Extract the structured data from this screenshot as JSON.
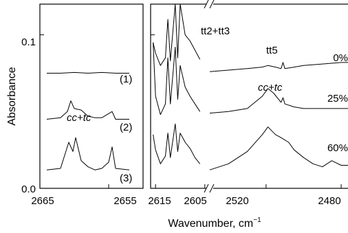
{
  "chart_data": {
    "type": "line",
    "xlabel": "Wavenumber, cm",
    "xlabel_sup": "−1",
    "ylabel": "Absorbance",
    "ylim": [
      0.0,
      0.12
    ],
    "y_ticks": [
      "0.0",
      "0.1"
    ],
    "grid": false,
    "panels": [
      {
        "id": "left",
        "x_range": [
          2665,
          2650
        ],
        "x_ticks": [
          "2665",
          "2655"
        ],
        "labels": [
          {
            "text": "cc+tc",
            "italic": true
          }
        ],
        "series": [
          {
            "name": "(1)",
            "x": [
              2664,
              2662,
              2660,
              2658,
              2656,
              2654,
              2652
            ],
            "y": [
              0.075,
              0.075,
              0.0755,
              0.075,
              0.0755,
              0.075,
              0.075
            ]
          },
          {
            "name": "(2)",
            "x": [
              2664,
              2662,
              2661,
              2660.5,
              2660,
              2659,
              2658,
              2657,
              2656,
              2654.5,
              2654,
              2652
            ],
            "y": [
              0.045,
              0.046,
              0.05,
              0.057,
              0.052,
              0.051,
              0.047,
              0.046,
              0.046,
              0.05,
              0.045,
              0.045
            ]
          },
          {
            "name": "(3)",
            "x": [
              2664,
              2662,
              2660.8,
              2660.2,
              2659.8,
              2659,
              2658,
              2657,
              2656,
              2655,
              2654.5,
              2654,
              2652
            ],
            "y": [
              0.012,
              0.013,
              0.03,
              0.024,
              0.033,
              0.018,
              0.014,
              0.012,
              0.013,
              0.017,
              0.027,
              0.013,
              0.012
            ]
          }
        ]
      },
      {
        "id": "middle",
        "x_range": [
          2616,
          2604
        ],
        "x_ticks": [
          "2615",
          "2605"
        ],
        "labels": [
          {
            "text": "tt2+tt3",
            "italic": false
          }
        ],
        "series": [
          {
            "name": "0%",
            "x": [
              2615.5,
              2615,
              2614,
              2613,
              2612.5,
              2612,
              2611,
              2610.5,
              2610,
              2609,
              2608,
              2607,
              2606
            ],
            "y": [
              0.095,
              0.088,
              0.08,
              0.085,
              0.11,
              0.083,
              0.12,
              0.085,
              0.12,
              0.1,
              0.096,
              0.09,
              0.084
            ]
          },
          {
            "name": "25%",
            "x": [
              2615.5,
              2615,
              2614,
              2613,
              2612.5,
              2612,
              2611,
              2610.5,
              2610,
              2609,
              2608,
              2607,
              2606
            ],
            "y": [
              0.095,
              0.06,
              0.048,
              0.055,
              0.085,
              0.055,
              0.092,
              0.058,
              0.08,
              0.066,
              0.06,
              0.055,
              0.05
            ]
          },
          {
            "name": "60%",
            "x": [
              2615.5,
              2615,
              2614,
              2613,
              2612.5,
              2612,
              2611,
              2610.5,
              2610,
              2609,
              2608,
              2607,
              2606
            ],
            "y": [
              0.035,
              0.025,
              0.016,
              0.021,
              0.036,
              0.02,
              0.042,
              0.024,
              0.036,
              0.03,
              0.026,
              0.02,
              0.016
            ]
          }
        ]
      },
      {
        "id": "right",
        "x_range": [
          2550,
          2476
        ],
        "x_ticks": [
          "2520",
          "2480"
        ],
        "labels": [
          {
            "text": "tt5",
            "italic": false
          },
          {
            "text": "cc+tc",
            "italic": true
          }
        ],
        "series": [
          {
            "name": "0%",
            "x": [
              2550,
              2540,
              2530,
              2522,
              2519,
              2515,
              2512,
              2511,
              2510,
              2505,
              2500,
              2490,
              2480,
              2476
            ],
            "y": [
              0.076,
              0.077,
              0.078,
              0.079,
              0.08,
              0.079,
              0.078,
              0.082,
              0.078,
              0.079,
              0.08,
              0.081,
              0.082,
              0.082
            ]
          },
          {
            "name": "25%",
            "x": [
              2550,
              2540,
              2530,
              2522,
              2519,
              2516,
              2512,
              2511,
              2510,
              2505,
              2500,
              2490,
              2480,
              2476
            ],
            "y": [
              0.049,
              0.05,
              0.052,
              0.06,
              0.065,
              0.062,
              0.056,
              0.059,
              0.055,
              0.053,
              0.052,
              0.052,
              0.052,
              0.052
            ]
          },
          {
            "name": "60%",
            "x": [
              2550,
              2540,
              2530,
              2522,
              2519,
              2515,
              2512,
              2508,
              2505,
              2500,
              2495,
              2490,
              2485,
              2480,
              2476
            ],
            "y": [
              0.012,
              0.016,
              0.024,
              0.035,
              0.04,
              0.035,
              0.033,
              0.03,
              0.025,
              0.02,
              0.016,
              0.014,
              0.018,
              0.015,
              0.015
            ]
          }
        ]
      }
    ]
  }
}
